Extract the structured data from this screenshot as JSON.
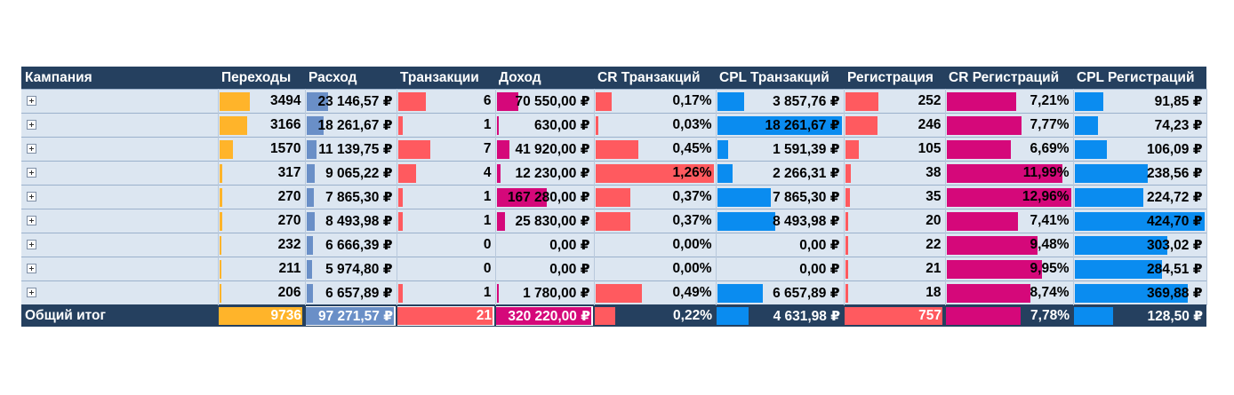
{
  "columns": [
    {
      "key": "campaign",
      "label": "Кампания"
    },
    {
      "key": "clicks",
      "label": "Переходы",
      "color": "#ffb42a",
      "max": 9736
    },
    {
      "key": "cost",
      "label": "Расход",
      "color": "#6a8fc7",
      "max": 97271.57
    },
    {
      "key": "transactions",
      "label": "Транзакции",
      "color": "#ff5a5f",
      "max": 21
    },
    {
      "key": "revenue",
      "label": "Доход",
      "color": "#d5087a",
      "max": 320220
    },
    {
      "key": "cr_tx",
      "label": "CR Транзакций",
      "color": "#ff5a5f",
      "max": 1.26
    },
    {
      "key": "cpl_tx",
      "label": "CPL Транзакций",
      "color": "#0a8cf0",
      "max": 18261.67
    },
    {
      "key": "regs",
      "label": "Регистрация",
      "color": "#ff5a5f",
      "max": 757
    },
    {
      "key": "cr_reg",
      "label": "CR Регистраций",
      "color": "#d5087a",
      "max": 12.96
    },
    {
      "key": "cpl_reg",
      "label": "CPL Регистраций",
      "color": "#0a8cf0",
      "max": 424.7
    }
  ],
  "rows": [
    {
      "clicks": {
        "text": "3494",
        "v": 3494
      },
      "cost": {
        "text": "23 146,57 ₽",
        "v": 23146.57
      },
      "transactions": {
        "text": "6",
        "v": 6
      },
      "revenue": {
        "text": "70 550,00 ₽",
        "v": 70550
      },
      "cr_tx": {
        "text": "0,17%",
        "v": 0.17
      },
      "cpl_tx": {
        "text": "3 857,76 ₽",
        "v": 3857.76
      },
      "regs": {
        "text": "252",
        "v": 252
      },
      "cr_reg": {
        "text": "7,21%",
        "v": 7.21
      },
      "cpl_reg": {
        "text": "91,85 ₽",
        "v": 91.85
      }
    },
    {
      "clicks": {
        "text": "3166",
        "v": 3166
      },
      "cost": {
        "text": "18 261,67 ₽",
        "v": 18261.67
      },
      "transactions": {
        "text": "1",
        "v": 1
      },
      "revenue": {
        "text": "630,00 ₽",
        "v": 630
      },
      "cr_tx": {
        "text": "0,03%",
        "v": 0.03
      },
      "cpl_tx": {
        "text": "18 261,67 ₽",
        "v": 18261.67
      },
      "regs": {
        "text": "246",
        "v": 246
      },
      "cr_reg": {
        "text": "7,77%",
        "v": 7.77
      },
      "cpl_reg": {
        "text": "74,23 ₽",
        "v": 74.23
      }
    },
    {
      "clicks": {
        "text": "1570",
        "v": 1570
      },
      "cost": {
        "text": "11 139,75 ₽",
        "v": 11139.75
      },
      "transactions": {
        "text": "7",
        "v": 7
      },
      "revenue": {
        "text": "41 920,00 ₽",
        "v": 41920
      },
      "cr_tx": {
        "text": "0,45%",
        "v": 0.45
      },
      "cpl_tx": {
        "text": "1 591,39 ₽",
        "v": 1591.39
      },
      "regs": {
        "text": "105",
        "v": 105
      },
      "cr_reg": {
        "text": "6,69%",
        "v": 6.69
      },
      "cpl_reg": {
        "text": "106,09 ₽",
        "v": 106.09
      }
    },
    {
      "clicks": {
        "text": "317",
        "v": 317
      },
      "cost": {
        "text": "9 065,22 ₽",
        "v": 9065.22
      },
      "transactions": {
        "text": "4",
        "v": 4
      },
      "revenue": {
        "text": "12 230,00 ₽",
        "v": 12230
      },
      "cr_tx": {
        "text": "1,26%",
        "v": 1.26
      },
      "cpl_tx": {
        "text": "2 266,31 ₽",
        "v": 2266.31
      },
      "regs": {
        "text": "38",
        "v": 38
      },
      "cr_reg": {
        "text": "11,99%",
        "v": 11.99
      },
      "cpl_reg": {
        "text": "238,56 ₽",
        "v": 238.56
      }
    },
    {
      "clicks": {
        "text": "270",
        "v": 270
      },
      "cost": {
        "text": "7 865,30 ₽",
        "v": 7865.3
      },
      "transactions": {
        "text": "1",
        "v": 1
      },
      "revenue": {
        "text": "167 280,00 ₽",
        "v": 167280
      },
      "cr_tx": {
        "text": "0,37%",
        "v": 0.37
      },
      "cpl_tx": {
        "text": "7 865,30 ₽",
        "v": 7865.3
      },
      "regs": {
        "text": "35",
        "v": 35
      },
      "cr_reg": {
        "text": "12,96%",
        "v": 12.96
      },
      "cpl_reg": {
        "text": "224,72 ₽",
        "v": 224.72
      }
    },
    {
      "clicks": {
        "text": "270",
        "v": 270
      },
      "cost": {
        "text": "8 493,98 ₽",
        "v": 8493.98
      },
      "transactions": {
        "text": "1",
        "v": 1
      },
      "revenue": {
        "text": "25 830,00 ₽",
        "v": 25830
      },
      "cr_tx": {
        "text": "0,37%",
        "v": 0.37
      },
      "cpl_tx": {
        "text": "8 493,98 ₽",
        "v": 8493.98
      },
      "regs": {
        "text": "20",
        "v": 20
      },
      "cr_reg": {
        "text": "7,41%",
        "v": 7.41
      },
      "cpl_reg": {
        "text": "424,70 ₽",
        "v": 424.7
      }
    },
    {
      "clicks": {
        "text": "232",
        "v": 232
      },
      "cost": {
        "text": "6 666,39 ₽",
        "v": 6666.39
      },
      "transactions": {
        "text": "0",
        "v": 0
      },
      "revenue": {
        "text": "0,00 ₽",
        "v": 0
      },
      "cr_tx": {
        "text": "0,00%",
        "v": 0
      },
      "cpl_tx": {
        "text": "0,00 ₽",
        "v": 0
      },
      "regs": {
        "text": "22",
        "v": 22
      },
      "cr_reg": {
        "text": "9,48%",
        "v": 9.48
      },
      "cpl_reg": {
        "text": "303,02 ₽",
        "v": 303.02
      }
    },
    {
      "clicks": {
        "text": "211",
        "v": 211
      },
      "cost": {
        "text": "5 974,80 ₽",
        "v": 5974.8
      },
      "transactions": {
        "text": "0",
        "v": 0
      },
      "revenue": {
        "text": "0,00 ₽",
        "v": 0
      },
      "cr_tx": {
        "text": "0,00%",
        "v": 0
      },
      "cpl_tx": {
        "text": "0,00 ₽",
        "v": 0
      },
      "regs": {
        "text": "21",
        "v": 21
      },
      "cr_reg": {
        "text": "9,95%",
        "v": 9.95
      },
      "cpl_reg": {
        "text": "284,51 ₽",
        "v": 284.51
      }
    },
    {
      "clicks": {
        "text": "206",
        "v": 206
      },
      "cost": {
        "text": "6 657,89 ₽",
        "v": 6657.89
      },
      "transactions": {
        "text": "1",
        "v": 1
      },
      "revenue": {
        "text": "1 780,00 ₽",
        "v": 1780
      },
      "cr_tx": {
        "text": "0,49%",
        "v": 0.49
      },
      "cpl_tx": {
        "text": "6 657,89 ₽",
        "v": 6657.89
      },
      "regs": {
        "text": "18",
        "v": 18
      },
      "cr_reg": {
        "text": "8,74%",
        "v": 8.74
      },
      "cpl_reg": {
        "text": "369,88 ₽",
        "v": 369.88
      }
    }
  ],
  "total": {
    "label": "Общий итог",
    "clicks": {
      "text": "9736",
      "v": 9736
    },
    "cost": {
      "text": "97 271,57 ₽",
      "v": 97271.57
    },
    "transactions": {
      "text": "21",
      "v": 21
    },
    "revenue": {
      "text": "320 220,00 ₽",
      "v": 320220
    },
    "cr_tx": {
      "text": "0,22%",
      "v": 0.22
    },
    "cpl_tx": {
      "text": "4 631,98 ₽",
      "v": 4631.98
    },
    "regs": {
      "text": "757",
      "v": 757
    },
    "cr_reg": {
      "text": "7,78%",
      "v": 7.78
    },
    "cpl_reg": {
      "text": "128,50 ₽",
      "v": 128.5
    }
  }
}
